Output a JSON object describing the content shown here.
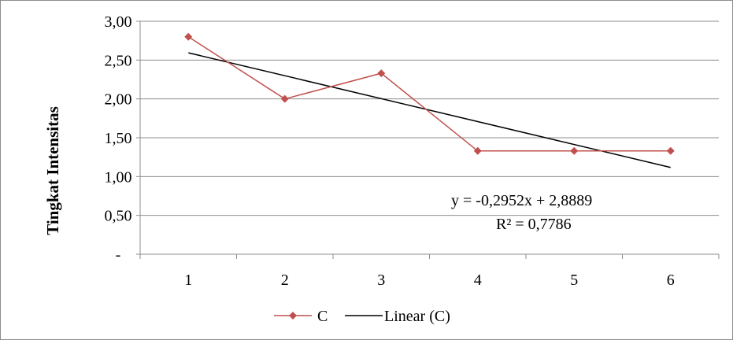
{
  "chart_data": {
    "type": "line",
    "ylabel": "Tingkat Intensitas",
    "xlabel": "",
    "categories": [
      "1",
      "2",
      "3",
      "4",
      "5",
      "6"
    ],
    "x": [
      1,
      2,
      3,
      4,
      5,
      6
    ],
    "ylim": [
      0,
      3
    ],
    "yticks": [
      0,
      0.5,
      1,
      1.5,
      2,
      2.5,
      3
    ],
    "ytick_labels": [
      "-",
      "0,50",
      "1,00",
      "1,50",
      "2,00",
      "2,50",
      "3,00"
    ],
    "grid": true,
    "series": [
      {
        "name": "C",
        "values": [
          2.8,
          2.0,
          2.33,
          1.33,
          1.33,
          1.33
        ],
        "color": "#c0504d",
        "marker": "diamond"
      },
      {
        "name": "Linear (C)",
        "kind": "trendline",
        "slope": -0.2952,
        "intercept": 2.8889,
        "color": "#000000"
      }
    ],
    "annotations": {
      "equation": "y = -0,2952x + 2,8889",
      "r_squared": "R² = 0,7786"
    },
    "legend": {
      "position": "bottom",
      "entries": [
        "C",
        "Linear (C)"
      ]
    }
  }
}
